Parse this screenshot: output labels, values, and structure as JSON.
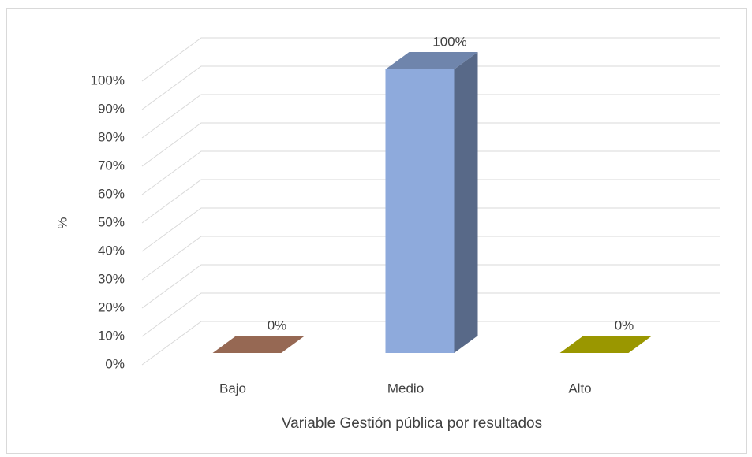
{
  "chart_data": {
    "type": "bar3d",
    "x_label": "Variable Gestión pública por resultados",
    "y_label": "%",
    "categories": [
      "Bajo",
      "Medio",
      "Alto"
    ],
    "values": [
      0,
      100,
      0
    ],
    "value_labels": [
      "0%",
      "100%",
      "0%"
    ],
    "colors": [
      "#c0856a",
      "#8eaadc",
      "#c6c200"
    ],
    "ylim": [
      0,
      100
    ],
    "yticks": [
      {
        "value": 0,
        "label": "0%"
      },
      {
        "value": 10,
        "label": "10%"
      },
      {
        "value": 20,
        "label": "20%"
      },
      {
        "value": 30,
        "label": "30%"
      },
      {
        "value": 40,
        "label": "40%"
      },
      {
        "value": 50,
        "label": "50%"
      },
      {
        "value": 60,
        "label": "60%"
      },
      {
        "value": 70,
        "label": "70%"
      },
      {
        "value": 80,
        "label": "80%"
      },
      {
        "value": 90,
        "label": "90%"
      },
      {
        "value": 100,
        "label": "100%"
      }
    ],
    "grid": true
  }
}
